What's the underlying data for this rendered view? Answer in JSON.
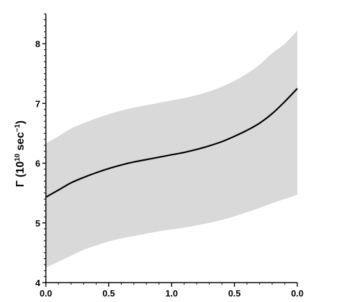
{
  "chart_data": {
    "type": "line",
    "title": "",
    "ylabel": {
      "prefix": "Γ (10",
      "exp1": "10",
      "mid": " sec",
      "exp2": "−1",
      "suffix": ")"
    },
    "xlabel": "",
    "x_tick_labels": [
      "0.0",
      "0.5",
      "1.0",
      "0.5",
      "0.0"
    ],
    "y_tick_labels": [
      "4",
      "5",
      "6",
      "7",
      "8"
    ],
    "xlim": [
      0,
      2
    ],
    "ylim": [
      4,
      8.5
    ],
    "grid": false,
    "series": [
      {
        "role": "central",
        "color": "#000000",
        "x": [
          0.0,
          0.1,
          0.2,
          0.3,
          0.4,
          0.5,
          0.6,
          0.7,
          0.8,
          0.9,
          1.0,
          1.1,
          1.2,
          1.3,
          1.4,
          1.5,
          1.6,
          1.7,
          1.8,
          1.9,
          2.0
        ],
        "y": [
          5.43,
          5.55,
          5.67,
          5.76,
          5.84,
          5.91,
          5.97,
          6.02,
          6.06,
          6.1,
          6.14,
          6.18,
          6.23,
          6.29,
          6.36,
          6.45,
          6.55,
          6.67,
          6.83,
          7.03,
          7.25
        ]
      }
    ],
    "band": {
      "color": "#d9d9d9",
      "x": [
        0.0,
        0.1,
        0.2,
        0.3,
        0.4,
        0.5,
        0.6,
        0.7,
        0.8,
        0.9,
        1.0,
        1.1,
        1.2,
        1.3,
        1.4,
        1.5,
        1.6,
        1.7,
        1.8,
        1.9,
        2.0
      ],
      "upper": [
        6.33,
        6.45,
        6.58,
        6.67,
        6.75,
        6.82,
        6.88,
        6.93,
        6.97,
        7.01,
        7.05,
        7.09,
        7.14,
        7.2,
        7.28,
        7.38,
        7.5,
        7.65,
        7.84,
        8.0,
        8.22
      ],
      "lower": [
        4.25,
        4.35,
        4.45,
        4.55,
        4.62,
        4.69,
        4.74,
        4.78,
        4.82,
        4.86,
        4.89,
        4.92,
        4.96,
        5.0,
        5.05,
        5.11,
        5.18,
        5.25,
        5.33,
        5.4,
        5.47
      ]
    }
  }
}
